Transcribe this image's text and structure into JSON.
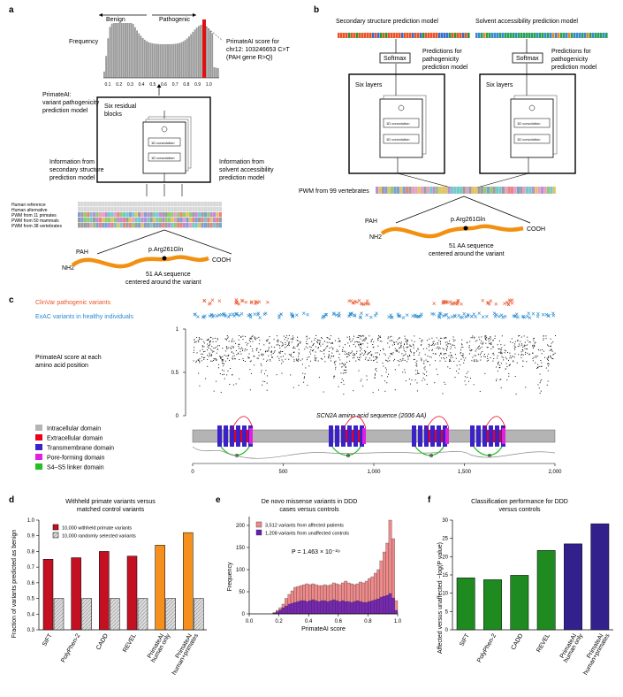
{
  "panel_labels": [
    "a",
    "b",
    "c",
    "d",
    "e",
    "f"
  ],
  "panel_a": {
    "benign": "Benign",
    "pathogenic": "Pathogenic",
    "y_label": "Frequency",
    "score_note": [
      "PrimateAI score for",
      "chr12: 103246653 C>T",
      "(PAH gene R>Q)"
    ],
    "model_label": [
      "PrimateAI:",
      "variant pathogenicity",
      "prediction model"
    ],
    "blocks_label": [
      "Six residual",
      "blocks"
    ],
    "conv_label": "1D convolution",
    "info_left": [
      "Information from",
      "secondary structure",
      "prediction model"
    ],
    "info_right": [
      "Information from",
      "solvent accessibility",
      "prediction model"
    ],
    "row_labels": [
      "Human reference",
      "Human alternative",
      "PWM from 11 primates",
      "PWM from 50 mammals",
      "PWM from 38 vertebrates"
    ],
    "gene": "PAH",
    "nh2": "NH2",
    "cooh": "COOH",
    "variant": "p.Arg261Gln",
    "window": [
      "51 AA sequence",
      "centered around the variant"
    ],
    "hist_ticks": [
      "0.1",
      "0.2",
      "0.3",
      "0.4",
      "0.5",
      "0.6",
      "0.7",
      "0.8",
      "0.9",
      "1.0"
    ]
  },
  "panel_b": {
    "title_left": "Secondary structure prediction model",
    "title_right": "Solvent accessibility prediction model",
    "softmax": "Softmax",
    "pred_note": [
      "Predictions for",
      "pathogenicity",
      "prediction model"
    ],
    "six_layers": "Six layers",
    "conv_label": "1D convolution",
    "pwm_label": "PWM from 99 vertebrates",
    "gene": "PAH",
    "nh2": "NH2",
    "cooh": "COOH",
    "variant": "p.Arg261Gln",
    "window": [
      "51 AA sequence",
      "centered around the variant"
    ]
  },
  "panel_c": {
    "clinvar_label": "ClinVar pathogenic variants",
    "exac_label": "ExAC variants in healthy individuals",
    "score_label": [
      "PrimateAI score at each",
      "amino acid position"
    ],
    "seq_title": "SCN2A amino acid sequence (2006 AA)",
    "y_ticks": [
      "1",
      "0.5",
      "0"
    ],
    "x_ticks": [
      "0",
      "500",
      "1,000",
      "1,500",
      "2,000"
    ],
    "legend": [
      {
        "label": "Intracellular domain",
        "color": "#b4b4b4"
      },
      {
        "label": "Extracellular domain",
        "color": "#e8001c"
      },
      {
        "label": "Transmembrane domain",
        "color": "#3b22c8"
      },
      {
        "label": "Pore-forming domain",
        "color": "#e020e0"
      },
      {
        "label": "S4–S5 linker domain",
        "color": "#22c022"
      }
    ],
    "colors": {
      "clinvar": "#e8552a",
      "exac": "#2a8ad0"
    }
  },
  "chart_data": [
    {
      "panel": "d",
      "type": "bar",
      "title": "Withheld primate variants versus matched control variants",
      "ylabel": "Fraction of variants predicted as benign",
      "xlabel": "",
      "ylim": [
        0.3,
        1.0
      ],
      "y_ticks": [
        "0.3",
        "0.4",
        "0.5",
        "0.6",
        "0.7",
        "0.8",
        "0.9",
        "1.0"
      ],
      "categories": [
        "SIFT",
        "PolyPhen-2",
        "CADD",
        "REVEL",
        "PrimateAI human only",
        "PrimateAI human+primates"
      ],
      "category_labels": [
        [
          "SIFT"
        ],
        [
          "PolyPhen-2"
        ],
        [
          "CADD"
        ],
        [
          "REVEL"
        ],
        [
          "PrimateAI",
          "human only"
        ],
        [
          "PrimateAI",
          "human+primates"
        ]
      ],
      "series": [
        {
          "name": "10,000 withheld primate variants",
          "values": [
            0.75,
            0.76,
            0.8,
            0.77,
            0.84,
            0.92
          ],
          "colors": [
            "#c41023",
            "#c41023",
            "#c41023",
            "#c41023",
            "#f5901e",
            "#f5901e"
          ]
        },
        {
          "name": "10,000 randomly selected variants",
          "values": [
            0.5,
            0.5,
            0.5,
            0.5,
            0.5,
            0.5
          ],
          "colors": [
            "#d9d9d9",
            "#d9d9d9",
            "#d9d9d9",
            "#d9d9d9",
            "#d9d9d9",
            "#d9d9d9"
          ]
        }
      ]
    },
    {
      "panel": "e",
      "type": "bar",
      "title": "De novo missense variants in DDD cases versus controls",
      "xlabel": "PrimateAI score",
      "ylabel": "Frequency",
      "xlim": [
        0.0,
        1.0
      ],
      "ylim": [
        0,
        220
      ],
      "x_ticks": [
        "0.0",
        "0.2",
        "0.4",
        "0.6",
        "0.8",
        "1.0"
      ],
      "y_ticks": [
        "0",
        "50",
        "100",
        "150",
        "200"
      ],
      "annotation": "P = 1.463 × 10⁻²⁹",
      "bin_start": 0.16,
      "bin_width": 0.02,
      "series": [
        {
          "name": "3,512 variants from affected patients",
          "color": "#f08a8a",
          "values": [
            3,
            8,
            14,
            22,
            35,
            44,
            52,
            60,
            62,
            64,
            66,
            68,
            66,
            68,
            66,
            64,
            64,
            66,
            64,
            66,
            70,
            68,
            66,
            70,
            74,
            70,
            68,
            66,
            68,
            72,
            70,
            74,
            80,
            84,
            92,
            100,
            120,
            140,
            160,
            212,
            170,
            30
          ]
        },
        {
          "name": "1,208 variants from unaffected controls",
          "color": "#6a1db8",
          "values": [
            2,
            5,
            9,
            14,
            18,
            22,
            24,
            26,
            28,
            30,
            30,
            28,
            30,
            32,
            30,
            28,
            30,
            30,
            28,
            30,
            32,
            30,
            28,
            30,
            28,
            28,
            26,
            28,
            30,
            28,
            26,
            26,
            28,
            30,
            32,
            34,
            38,
            40,
            42,
            46,
            36,
            8
          ]
        }
      ]
    },
    {
      "panel": "f",
      "type": "bar",
      "title": "Classification performance for DDD versus controls",
      "ylabel": "Affected versus unaffected −log(P value)",
      "xlabel": "",
      "ylim": [
        0,
        30
      ],
      "y_ticks": [
        "0",
        "5",
        "10",
        "15",
        "20",
        "25",
        "30"
      ],
      "categories": [
        "SIFT",
        "PolyPhen-2",
        "CADD",
        "REVEL",
        "PrimateAI human only",
        "PrimateAI human+primates"
      ],
      "category_labels": [
        [
          "SIFT"
        ],
        [
          "PolyPhen-2"
        ],
        [
          "CADD"
        ],
        [
          "REVEL"
        ],
        [
          "PrimateAI",
          "human only"
        ],
        [
          "PrimateAI",
          "human+primates"
        ]
      ],
      "values": [
        14.2,
        13.7,
        14.9,
        21.7,
        23.5,
        29.0
      ],
      "colors": [
        "#1f8a1f",
        "#1f8a1f",
        "#1f8a1f",
        "#1f8a1f",
        "#32208c",
        "#32208c"
      ]
    }
  ]
}
